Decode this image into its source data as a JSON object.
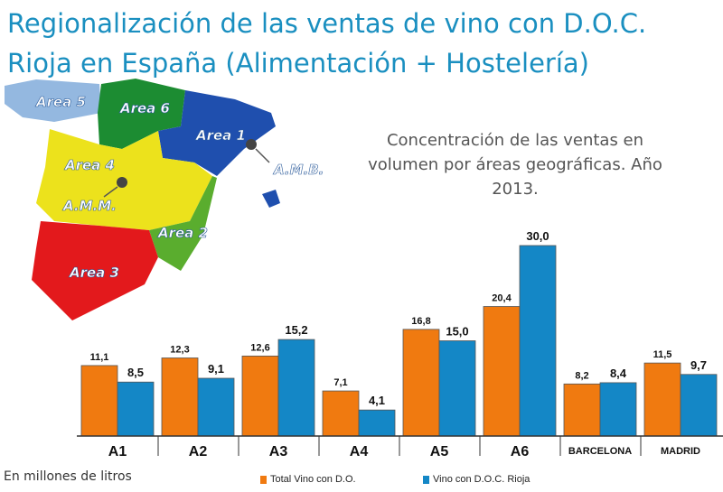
{
  "title_lines": [
    "Regionalización de las ventas de vino con D.O.C.",
    "Rioja en España (Alimentación + Hostelería)"
  ],
  "subtitle": "Concentración de las ventas en volumen por áreas geográficas. Año 2013.",
  "map": {
    "labels": [
      "Area 5",
      "Area 6",
      "Area 1",
      "Area 4",
      "A.M.B.",
      "A.M.M.",
      "Area 2",
      "Area 3"
    ],
    "colors": {
      "area1": "#1f4fae",
      "area2": "#5aad2e",
      "area3": "#e3191c",
      "area4": "#ece21c",
      "area5": "#94b8e0",
      "area6": "#1c8c32"
    }
  },
  "footnote": "En millones de litros",
  "chart_data": {
    "type": "bar",
    "title": "",
    "categories": [
      "A1",
      "A2",
      "A3",
      "A4",
      "A5",
      "A6",
      "BARCELONA",
      "MADRID"
    ],
    "series": [
      {
        "name": "Total Vino con D.O.",
        "color": "#f07a10",
        "values": [
          11.1,
          12.3,
          12.6,
          7.1,
          16.8,
          20.4,
          8.2,
          11.5
        ],
        "labels": [
          "11,1",
          "12,3",
          "12,6",
          "7,1",
          "16,8",
          "20,4",
          "8,2",
          "11,5"
        ]
      },
      {
        "name": "Vino con D.O.C. Rioja",
        "color": "#1487c6",
        "values": [
          8.5,
          9.1,
          15.2,
          4.1,
          15.0,
          30.0,
          8.4,
          9.7
        ],
        "labels": [
          "8,5",
          "9,1",
          "15,2",
          "4,1",
          "15,0",
          "30,0",
          "8,4",
          "9,7"
        ]
      }
    ],
    "ylim": [
      0,
      30
    ],
    "xlabel": "",
    "ylabel": "",
    "grid": false,
    "legend": "bottom"
  }
}
